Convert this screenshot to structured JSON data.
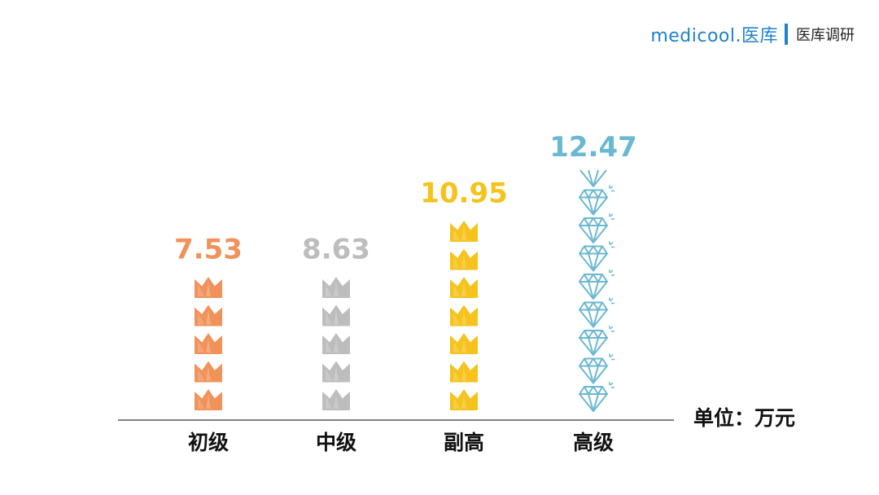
{
  "brand": {
    "logo_text": "medicool.医库",
    "subtitle": "医库调研"
  },
  "unit_label": "单位：万元",
  "colors": {
    "初级": "#f0925a",
    "中级": "#bdbdbd",
    "副高": "#f6c21c",
    "高级": "#6ab8d2",
    "axis": "#333333"
  },
  "icons": {
    "初级": "crown-icon",
    "中级": "crown-icon",
    "副高": "crown-icon",
    "高级": "diamond-icon"
  },
  "chart_data": {
    "type": "bar",
    "categories": [
      "初级",
      "中级",
      "副高",
      "高级"
    ],
    "values": [
      7.53,
      8.63,
      10.95,
      12.47
    ],
    "value_labels": [
      "7.53",
      "8.63",
      "10.95",
      "12.47"
    ],
    "ylabel": "单位：万元",
    "xlabel": "",
    "grid": false,
    "legend": "none"
  }
}
